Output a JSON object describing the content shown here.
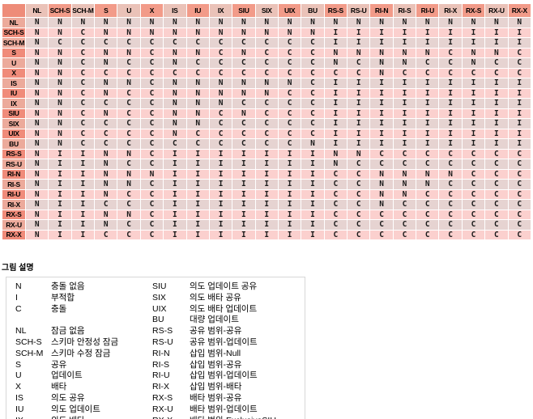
{
  "matrix": {
    "columns": [
      "NL",
      "SCH-S",
      "SCH-M",
      "S",
      "U",
      "X",
      "IS",
      "IU",
      "IX",
      "SIU",
      "SIX",
      "UIX",
      "BU",
      "RS-S",
      "RS-U",
      "RI-N",
      "RI-S",
      "RI-U",
      "RI-X",
      "RX-S",
      "RX-U",
      "RX-X"
    ],
    "rows": [
      {
        "label": "NL",
        "cells": "NNNNNNNNNNNNNNNNNNNNNN"
      },
      {
        "label": "SCH-S",
        "cells": "NNCNNNNNNNNNNIIIIIIIII"
      },
      {
        "label": "SCH-M",
        "cells": "NCCCCCCCCCCCCIIIIIIIII"
      },
      {
        "label": "S",
        "cells": "NNCNNCNNCNCCCNNNNNCNNC"
      },
      {
        "label": "U",
        "cells": "NNCNCCNCCCCCCNCNNCCNCC"
      },
      {
        "label": "X",
        "cells": "NNCCCCCCCCCCCCCNCCCCCC"
      },
      {
        "label": "IS",
        "cells": "NNCNNCNNNNNNCIIIIIIIII"
      },
      {
        "label": "IU",
        "cells": "NNCNCCNNNNNCCIIIIIIIII"
      },
      {
        "label": "IX",
        "cells": "NNCCCCNNNCCCCIIIIIIIII"
      },
      {
        "label": "SIU",
        "cells": "NNCNCCNNCNCCCIIIIIIIII"
      },
      {
        "label": "SIX",
        "cells": "NNCCCCNNCCCCCIIIIIIIII"
      },
      {
        "label": "UIX",
        "cells": "NNCCCCNCCCCCCIIIIIIIII"
      },
      {
        "label": "BU",
        "cells": "NNCCCCCCCCCCNIIIIIIIII"
      },
      {
        "label": "RS-S",
        "cells": "NIINNCIIIIIIINNCCCCCCC"
      },
      {
        "label": "RS-U",
        "cells": "NIINCCIIIIIIINCCCCCCCC"
      },
      {
        "label": "RI-N",
        "cells": "NIINNNIIIIIIICCNNNNCCC"
      },
      {
        "label": "RI-S",
        "cells": "NIINNCIIIIIIICCNNNCCCC"
      },
      {
        "label": "RI-U",
        "cells": "NIINCCIIIIIIICCNNCCCCC"
      },
      {
        "label": "RI-X",
        "cells": "NIICCCIIIIIIICCNCCCCCC"
      },
      {
        "label": "RX-S",
        "cells": "NIINNCIIIIIIICCCCCCCCC"
      },
      {
        "label": "RX-U",
        "cells": "NIINCCIIIIIIICCCCCCCCC"
      },
      {
        "label": "RX-X",
        "cells": "NIICCCIIIIIIICCCCCCCCC"
      }
    ]
  },
  "legend": {
    "title": "그림 설명",
    "left": [
      {
        "term": "N",
        "desc": "충돌 없음"
      },
      {
        "term": "I",
        "desc": "부적합"
      },
      {
        "term": "C",
        "desc": "충돌"
      },
      {
        "term": "",
        "desc": ""
      },
      {
        "term": "NL",
        "desc": "잠금 없음"
      },
      {
        "term": "SCH-S",
        "desc": "스키마 안정성 잠금"
      },
      {
        "term": "SCH-M",
        "desc": "스키마 수정 잠금"
      },
      {
        "term": "S",
        "desc": "공유"
      },
      {
        "term": "U",
        "desc": "업데이트"
      },
      {
        "term": "X",
        "desc": "배타"
      },
      {
        "term": "IS",
        "desc": "의도 공유"
      },
      {
        "term": "IU",
        "desc": "의도 업데이트"
      },
      {
        "term": "IX",
        "desc": "의도 배타"
      }
    ],
    "right": [
      {
        "term": "SIU",
        "desc": "의도 업데이트 공유"
      },
      {
        "term": "SIX",
        "desc": "의도 배타 공유"
      },
      {
        "term": "UIX",
        "desc": "의도 배타 업데이트"
      },
      {
        "term": "BU",
        "desc": "대량 업데이트"
      },
      {
        "term": "RS-S",
        "desc": "공유 범위-공유"
      },
      {
        "term": "RS-U",
        "desc": "공유 범위-업데이트"
      },
      {
        "term": "RI-N",
        "desc": "삽입 범위-Null"
      },
      {
        "term": "RI-S",
        "desc": "삽입 범위-공유"
      },
      {
        "term": "RI-U",
        "desc": "삽입 범위-업데이트"
      },
      {
        "term": "RI-X",
        "desc": "삽입 범위-배타"
      },
      {
        "term": "RX-S",
        "desc": "배타 범위-공유"
      },
      {
        "term": "RX-U",
        "desc": "배타 범위-업데이트"
      },
      {
        "term": "RX-X",
        "desc": "배타 범위-ExclusiveSIU"
      }
    ]
  },
  "colors": {
    "corner": "#EE8C79",
    "header_dark": "#F29B89",
    "header_light": "#EAC2B8",
    "rowlabel_dark": "#F08B7A",
    "rowlabel_light": "#ECAA9B",
    "cell_pink": "#FBD0CE",
    "cell_gray": "#E6D3D1",
    "legend_border": "#D7D7D7"
  }
}
